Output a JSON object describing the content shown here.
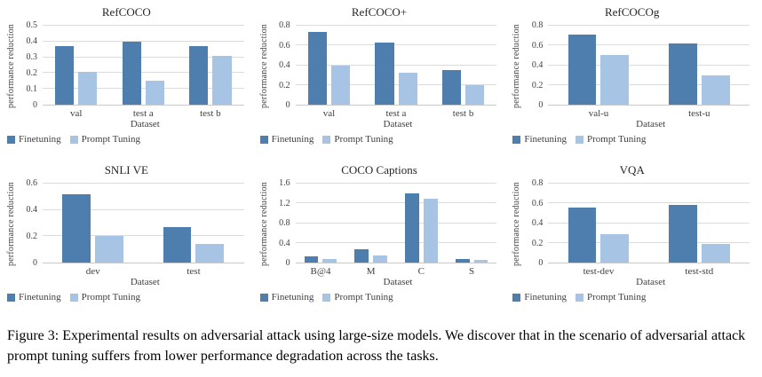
{
  "figure": {
    "caption": "Figure 3: Experimental results on adversarial attack using large-size models. We discover that in the scenario of adversarial attack prompt tuning suffers from lower performance degradation across the tasks."
  },
  "palette": {
    "finetuning": "#4d7ead",
    "prompt_tuning": "#a7c4e4",
    "gridline": "#dcdcdc",
    "baseline": "#c9c9c9",
    "text": "#404040"
  },
  "legend": {
    "finetuning_label": "Finetuning",
    "prompt_tuning_label": "Prompt Tuning"
  },
  "chart_data": [
    {
      "type": "bar",
      "title": "RefCOCO",
      "xlabel": "Dataset",
      "ylabel": "performance reduction",
      "ylim": [
        0,
        0.5
      ],
      "yticks": [
        0,
        0.1,
        0.2,
        0.3,
        0.4,
        0.5
      ],
      "grid": true,
      "legend_position": "bottom-left",
      "categories": [
        "val",
        "test a",
        "test b"
      ],
      "series": [
        {
          "name": "Finetuning",
          "values": [
            0.37,
            0.4,
            0.37
          ]
        },
        {
          "name": "Prompt Tuning",
          "values": [
            0.21,
            0.15,
            0.31
          ]
        }
      ]
    },
    {
      "type": "bar",
      "title": "RefCOCO+",
      "xlabel": "Dataset",
      "ylabel": "performance reduction",
      "ylim": [
        0,
        0.8
      ],
      "yticks": [
        0,
        0.2,
        0.4,
        0.6,
        0.8
      ],
      "grid": true,
      "legend_position": "bottom-left",
      "categories": [
        "val",
        "test a",
        "test b"
      ],
      "series": [
        {
          "name": "Finetuning",
          "values": [
            0.74,
            0.63,
            0.35
          ]
        },
        {
          "name": "Prompt Tuning",
          "values": [
            0.4,
            0.32,
            0.2
          ]
        }
      ]
    },
    {
      "type": "bar",
      "title": "RefCOCOg",
      "xlabel": "Dataset",
      "ylabel": "performance reduction",
      "ylim": [
        0,
        0.8
      ],
      "yticks": [
        0,
        0.2,
        0.4,
        0.6,
        0.8
      ],
      "grid": true,
      "legend_position": "bottom-left",
      "categories": [
        "val-u",
        "test-u"
      ],
      "series": [
        {
          "name": "Finetuning",
          "values": [
            0.71,
            0.62
          ]
        },
        {
          "name": "Prompt Tuning",
          "values": [
            0.5,
            0.3
          ]
        }
      ]
    },
    {
      "type": "bar",
      "title": "SNLI VE",
      "xlabel": "Dataset",
      "ylabel": "performance reduction",
      "ylim": [
        0,
        0.6
      ],
      "yticks": [
        0,
        0.2,
        0.4,
        0.6
      ],
      "grid": true,
      "legend_position": "bottom-left",
      "categories": [
        "dev",
        "test"
      ],
      "series": [
        {
          "name": "Finetuning",
          "values": [
            0.52,
            0.27
          ]
        },
        {
          "name": "Prompt Tuning",
          "values": [
            0.2,
            0.14
          ]
        }
      ]
    },
    {
      "type": "bar",
      "title": "COCO Captions",
      "xlabel": "Dataset",
      "ylabel": "performance reduction",
      "ylim": [
        0,
        1.6
      ],
      "yticks": [
        0,
        0.4,
        0.8,
        1.2,
        1.6
      ],
      "grid": true,
      "legend_position": "bottom-left",
      "categories": [
        "B@4",
        "M",
        "C",
        "S"
      ],
      "series": [
        {
          "name": "Finetuning",
          "values": [
            0.13,
            0.27,
            1.41,
            0.08
          ]
        },
        {
          "name": "Prompt Tuning",
          "values": [
            0.07,
            0.14,
            1.3,
            0.06
          ]
        }
      ]
    },
    {
      "type": "bar",
      "title": "VQA",
      "xlabel": "Dataset",
      "ylabel": "performance reduction",
      "ylim": [
        0,
        0.8
      ],
      "yticks": [
        0,
        0.2,
        0.4,
        0.6,
        0.8
      ],
      "grid": true,
      "legend_position": "bottom-left",
      "categories": [
        "test-dev",
        "test-std"
      ],
      "series": [
        {
          "name": "Finetuning",
          "values": [
            0.56,
            0.58
          ]
        },
        {
          "name": "Prompt Tuning",
          "values": [
            0.29,
            0.19
          ]
        }
      ]
    }
  ]
}
